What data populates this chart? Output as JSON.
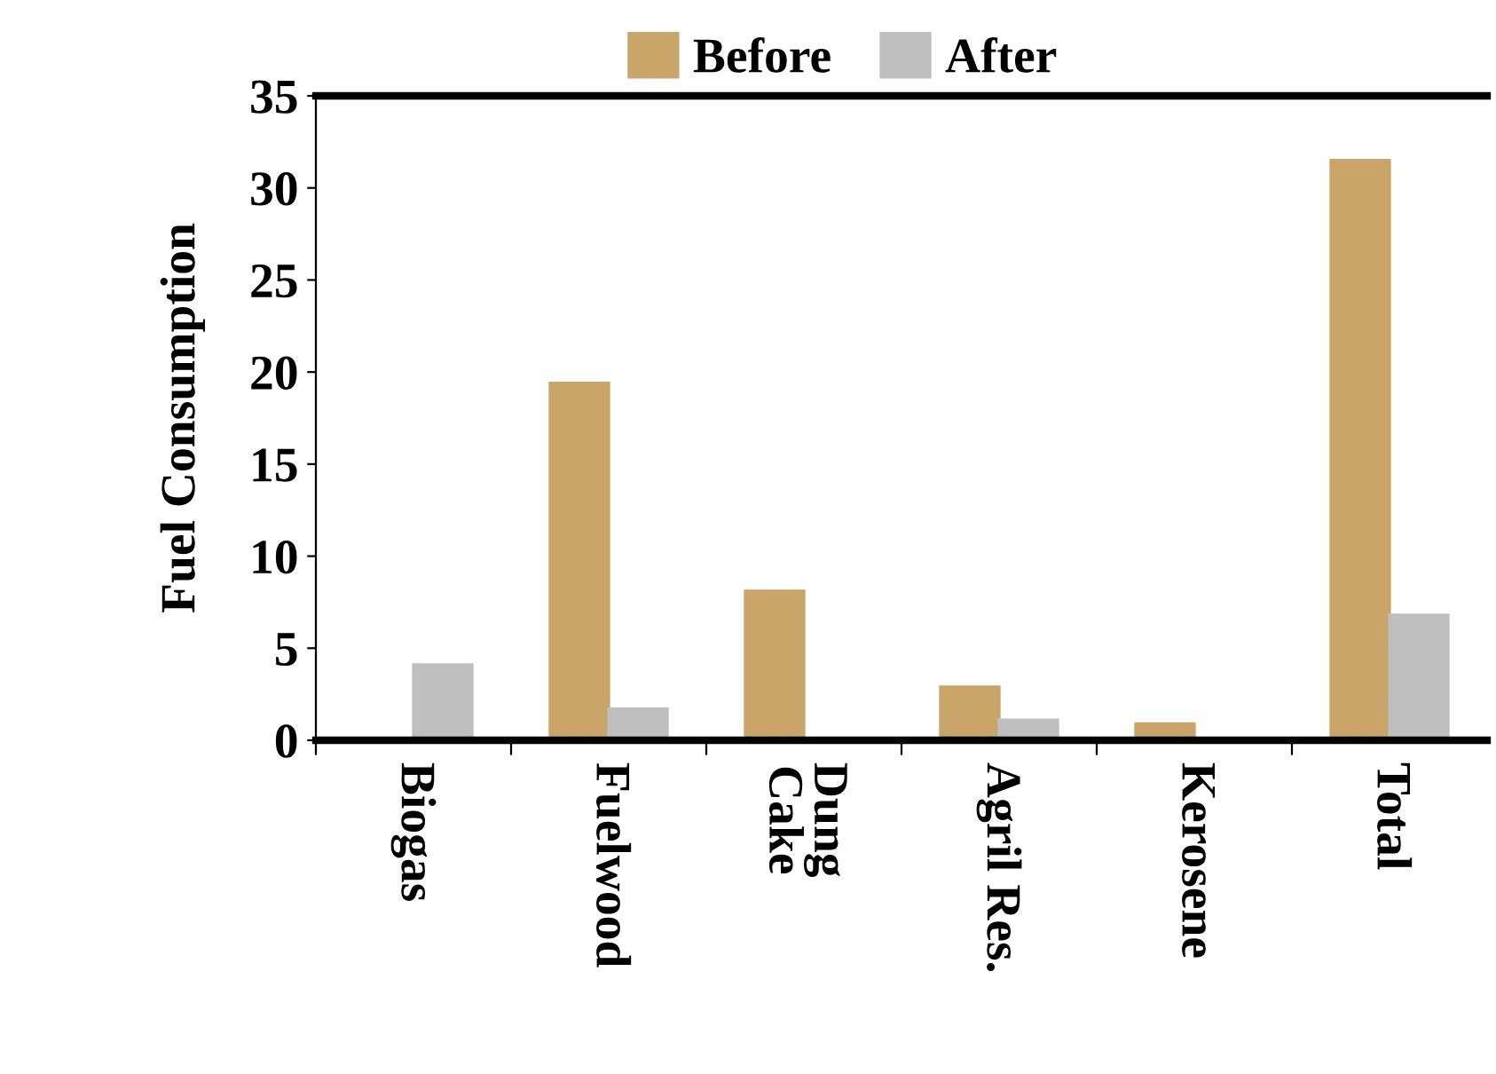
{
  "chart_data": {
    "type": "bar",
    "ylabel": "Fuel Consumption",
    "categories": [
      "Biogas",
      "Fuelwood",
      "Dung\nCake",
      "Agril Res.",
      "Kerosene",
      "Total"
    ],
    "series": [
      {
        "name": "Before",
        "color": "#c9a56a",
        "values": [
          0,
          19.4,
          8.1,
          2.9,
          0.9,
          31.5
        ]
      },
      {
        "name": "After",
        "color": "#bfbfbf",
        "values": [
          4.1,
          1.7,
          0,
          1.1,
          0,
          6.8
        ]
      }
    ],
    "ylim": [
      0,
      35
    ],
    "yticks": [
      0,
      5,
      10,
      15,
      20,
      25,
      30,
      35
    ],
    "grid": false,
    "legend": "top"
  }
}
